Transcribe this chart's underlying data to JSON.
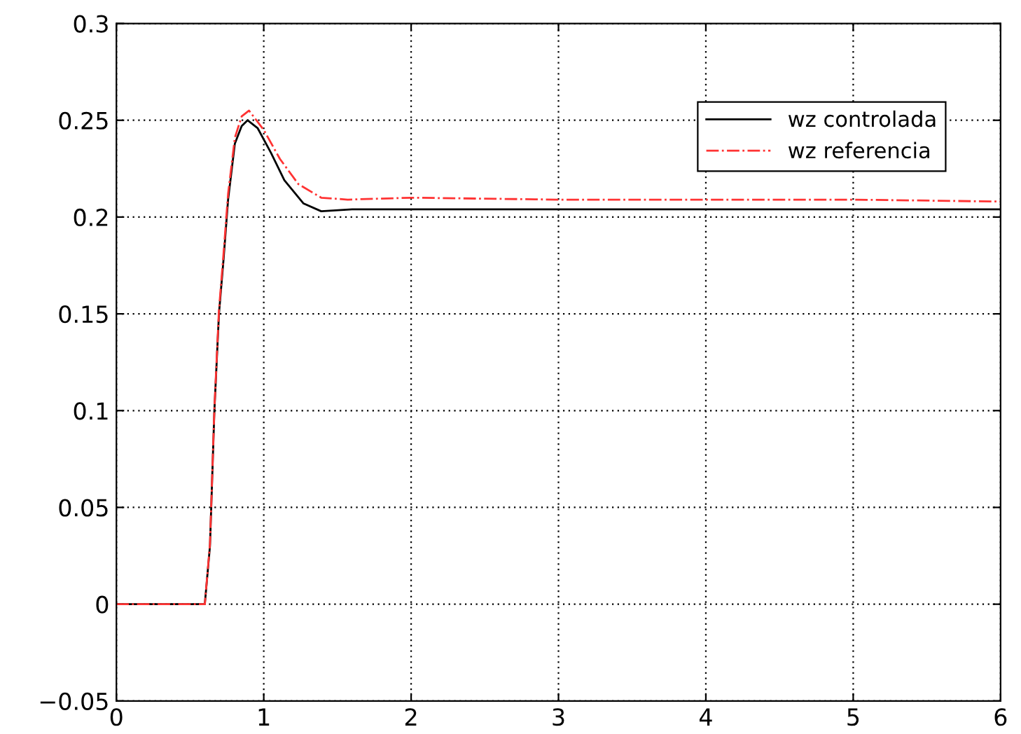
{
  "chart_data": {
    "type": "line",
    "xlim": [
      0,
      6
    ],
    "ylim": [
      -0.05,
      0.3
    ],
    "xticks": [
      0,
      1,
      2,
      3,
      4,
      5,
      6
    ],
    "yticks": [
      {
        "value": -0.05,
        "label": "−0.05"
      },
      0,
      0.05,
      0.1,
      0.15,
      0.2,
      0.25,
      0.3
    ],
    "grid": true,
    "legend": "top right",
    "series": [
      {
        "name": "wz controlada",
        "color": "#000000",
        "line_style": "solid",
        "x": [
          0,
          0.6,
          0.635,
          0.665,
          0.696,
          0.727,
          0.758,
          0.804,
          0.85,
          0.89,
          0.958,
          1.05,
          1.14,
          1.27,
          1.39,
          1.6,
          2.0,
          3.0,
          4.0,
          5.0,
          6.0
        ],
        "values": [
          0,
          0,
          0.03,
          0.1,
          0.15,
          0.178,
          0.209,
          0.238,
          0.247,
          0.25,
          0.246,
          0.233,
          0.219,
          0.207,
          0.203,
          0.204,
          0.204,
          0.204,
          0.204,
          0.204,
          0.204
        ]
      },
      {
        "name": "wz referencia",
        "color": "#ff3333",
        "line_style": "dashdot",
        "x": [
          0,
          0.6,
          0.635,
          0.665,
          0.696,
          0.727,
          0.758,
          0.804,
          0.85,
          0.9,
          1.0,
          1.11,
          1.235,
          1.39,
          1.57,
          2.0,
          3.0,
          4.0,
          5.0,
          6.0
        ],
        "values": [
          0,
          0,
          0.031,
          0.101,
          0.152,
          0.181,
          0.212,
          0.241,
          0.252,
          0.255,
          0.245,
          0.23,
          0.217,
          0.21,
          0.209,
          0.21,
          0.209,
          0.209,
          0.209,
          0.208
        ]
      }
    ]
  }
}
